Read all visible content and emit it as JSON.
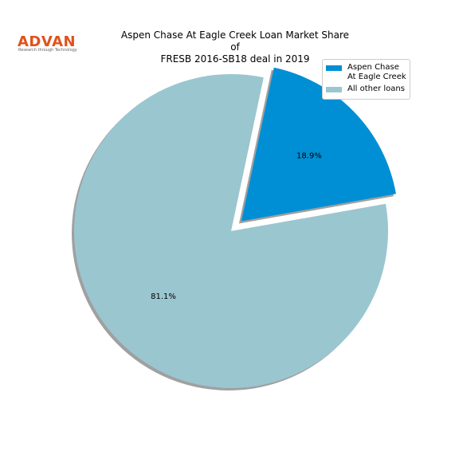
{
  "logo": {
    "name": "ADVAN",
    "tagline": "Research through Technology"
  },
  "chart_data": {
    "type": "pie",
    "title": "Aspen Chase At Eagle Creek Loan Market Share of\nFRESB 2016-SB18 deal in 2019",
    "categories": [
      "Aspen Chase\nAt Eagle Creek",
      "All other loans"
    ],
    "values": [
      18.9,
      81.1
    ],
    "value_labels": [
      "18.9%",
      "81.1%"
    ],
    "colors": [
      "#008fd5",
      "#9ac6d0"
    ],
    "explode": [
      true,
      false
    ],
    "shadow": true,
    "legend": "upper right"
  }
}
